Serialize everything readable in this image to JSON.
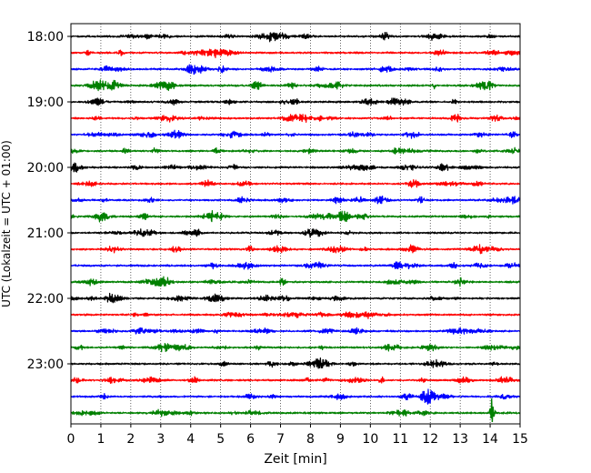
{
  "chart_data": {
    "type": "line",
    "xlabel": "Zeit  [min]",
    "ylabel": "UTC (Lokalzeit = UTC + 01:00)",
    "xlim": [
      0,
      15
    ],
    "x_ticks": [
      "0",
      "1",
      "2",
      "3",
      "4",
      "5",
      "6",
      "7",
      "8",
      "9",
      "10",
      "11",
      "12",
      "13",
      "14",
      "15"
    ],
    "y_tick_labels": [
      "18:00",
      "19:00",
      "20:00",
      "21:00",
      "22:00",
      "23:00"
    ],
    "grid": "vertical dotted lines at each minute",
    "trace_interval_minutes": 15,
    "trace_start_times": [
      "18:00",
      "18:15",
      "18:30",
      "18:45",
      "19:00",
      "19:15",
      "19:30",
      "19:45",
      "20:00",
      "20:15",
      "20:30",
      "20:45",
      "21:00",
      "21:15",
      "21:30",
      "21:45",
      "22:00",
      "22:15",
      "22:30",
      "22:45",
      "23:00",
      "23:15",
      "23:30",
      "23:45"
    ],
    "trace_color_cycle": [
      "#000000",
      "#ff0000",
      "#0000ff",
      "#008000"
    ],
    "notable_events": [
      {
        "trace_start": "23:45",
        "minute": 14.05,
        "description": "spike"
      }
    ]
  }
}
